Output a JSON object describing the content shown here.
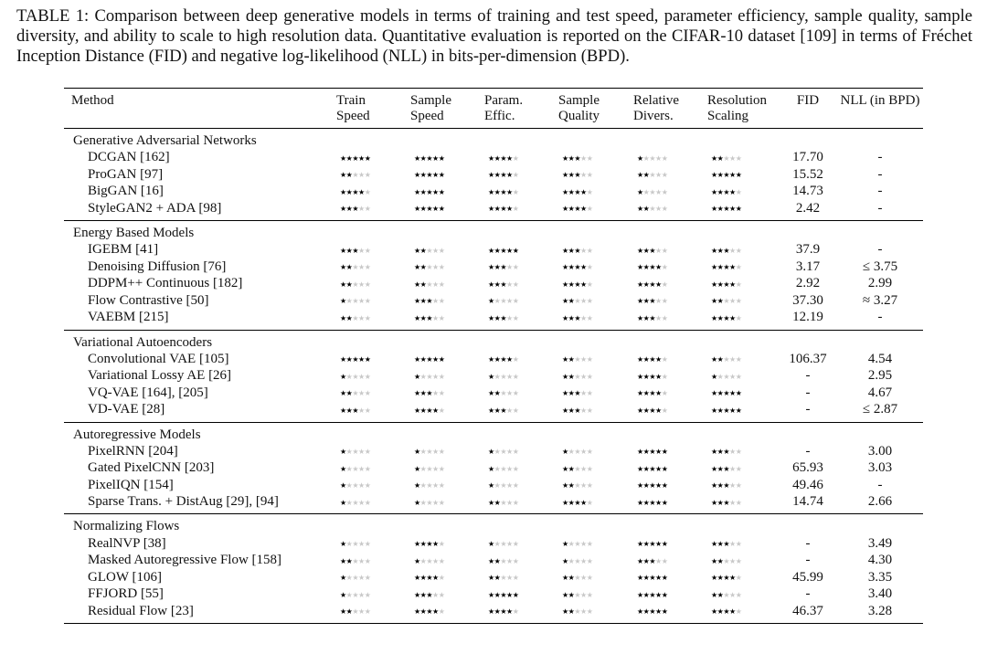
{
  "caption": "TABLE 1: Comparison between deep generative models in terms of training and test speed, parameter efficiency, sample quality, sample diversity, and ability to scale to high resolution data. Quantitative evaluation is reported on the CIFAR-10 dataset [109] in terms of Fréchet Inception Distance (FID) and negative log-likelihood (NLL) in bits-per-dimension (BPD).",
  "table": {
    "header": [
      "Method",
      "Train Speed",
      "Sample Speed",
      "Param. Effic.",
      "Sample Quality",
      "Relative Divers.",
      "Resolution Scaling",
      "FID",
      "NLL (in BPD)"
    ],
    "groups": [
      {
        "title": "Generative Adversarial Networks",
        "rows": [
          {
            "method": "DCGAN [162]",
            "ratings": [
              5,
              5,
              4,
              3,
              1,
              2
            ],
            "fid": "17.70",
            "nll": "-"
          },
          {
            "method": "ProGAN [97]",
            "ratings": [
              2,
              5,
              4,
              3,
              2,
              5
            ],
            "fid": "15.52",
            "nll": "-"
          },
          {
            "method": "BigGAN [16]",
            "ratings": [
              4,
              5,
              4,
              4,
              1,
              4
            ],
            "fid": "14.73",
            "nll": "-"
          },
          {
            "method": "StyleGAN2 + ADA [98]",
            "ratings": [
              3,
              5,
              4,
              4,
              2,
              5
            ],
            "fid": "2.42",
            "nll": "-"
          }
        ]
      },
      {
        "title": "Energy Based Models",
        "rows": [
          {
            "method": "IGEBM [41]",
            "ratings": [
              3,
              2,
              5,
              3,
              3,
              3
            ],
            "fid": "37.9",
            "nll": "-"
          },
          {
            "method": "Denoising Diffusion [76]",
            "ratings": [
              2,
              2,
              3,
              4,
              4,
              4
            ],
            "fid": "3.17",
            "nll": "≤ 3.75"
          },
          {
            "method": "DDPM++ Continuous [182]",
            "ratings": [
              2,
              2,
              3,
              4,
              4,
              4
            ],
            "fid": "2.92",
            "nll": "2.99"
          },
          {
            "method": "Flow Contrastive [50]",
            "ratings": [
              1,
              3,
              1,
              2,
              3,
              2
            ],
            "fid": "37.30",
            "nll": "≈ 3.27"
          },
          {
            "method": "VAEBM [215]",
            "ratings": [
              2,
              3,
              3,
              3,
              3,
              4
            ],
            "fid": "12.19",
            "nll": "-"
          }
        ]
      },
      {
        "title": "Variational Autoencoders",
        "rows": [
          {
            "method": "Convolutional VAE [105]",
            "ratings": [
              5,
              5,
              4,
              2,
              4,
              2
            ],
            "fid": "106.37",
            "nll": "4.54"
          },
          {
            "method": "Variational Lossy AE [26]",
            "ratings": [
              1,
              1,
              1,
              2,
              4,
              1
            ],
            "fid": "-",
            "nll": "2.95"
          },
          {
            "method": "VQ-VAE [164], [205]",
            "ratings": [
              2,
              3,
              2,
              3,
              4,
              5
            ],
            "fid": "-",
            "nll": "4.67"
          },
          {
            "method": "VD-VAE [28]",
            "ratings": [
              3,
              4,
              3,
              3,
              4,
              5
            ],
            "fid": "-",
            "nll": "≤ 2.87"
          }
        ]
      },
      {
        "title": "Autoregressive Models",
        "rows": [
          {
            "method": "PixelRNN [204]",
            "ratings": [
              1,
              1,
              1,
              1,
              5,
              3
            ],
            "fid": "-",
            "nll": "3.00"
          },
          {
            "method": "Gated PixelCNN [203]",
            "ratings": [
              1,
              1,
              1,
              2,
              5,
              3
            ],
            "fid": "65.93",
            "nll": "3.03"
          },
          {
            "method": "PixelIQN [154]",
            "ratings": [
              1,
              1,
              1,
              2,
              5,
              3
            ],
            "fid": "49.46",
            "nll": "-"
          },
          {
            "method": "Sparse Trans. + DistAug [29], [94]",
            "ratings": [
              1,
              1,
              2,
              4,
              5,
              3
            ],
            "fid": "14.74",
            "nll": "2.66"
          }
        ]
      },
      {
        "title": "Normalizing Flows",
        "rows": [
          {
            "method": "RealNVP [38]",
            "ratings": [
              1,
              4,
              1,
              1,
              5,
              3
            ],
            "fid": "-",
            "nll": "3.49"
          },
          {
            "method": "Masked Autoregressive Flow [158]",
            "ratings": [
              2,
              1,
              2,
              1,
              3,
              2
            ],
            "fid": "-",
            "nll": "4.30"
          },
          {
            "method": "GLOW [106]",
            "ratings": [
              1,
              4,
              2,
              2,
              5,
              4
            ],
            "fid": "45.99",
            "nll": "3.35"
          },
          {
            "method": "FFJORD [55]",
            "ratings": [
              1,
              3,
              5,
              2,
              5,
              2
            ],
            "fid": "-",
            "nll": "3.40"
          },
          {
            "method": "Residual Flow [23]",
            "ratings": [
              2,
              4,
              4,
              2,
              5,
              4
            ],
            "fid": "46.37",
            "nll": "3.28"
          }
        ]
      }
    ]
  }
}
